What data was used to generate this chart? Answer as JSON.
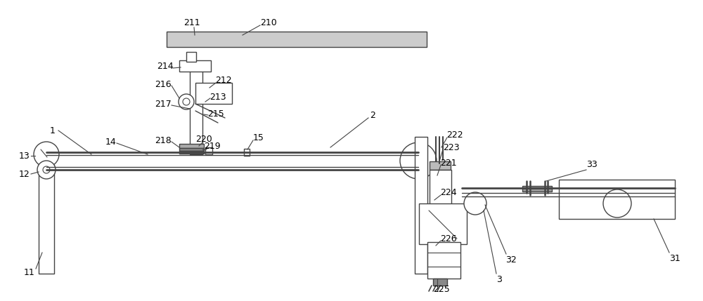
{
  "bg_color": "#ffffff",
  "lc": "#444444",
  "lw": 1.0,
  "tlw": 2.0,
  "fig_width": 10.0,
  "fig_height": 4.29,
  "dpi": 100
}
